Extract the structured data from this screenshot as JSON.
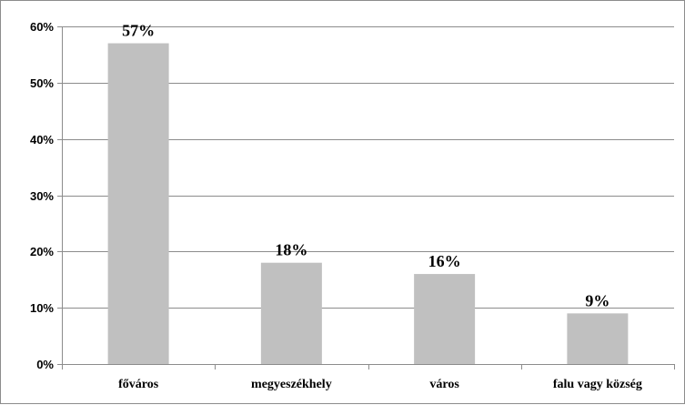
{
  "chart_data": {
    "type": "bar",
    "categories": [
      "főváros",
      "megyeszékhely",
      "város",
      "falu vagy község"
    ],
    "values": [
      57,
      18,
      16,
      9
    ],
    "data_labels": [
      "57%",
      "18%",
      "16%",
      "9%"
    ],
    "title": "",
    "xlabel": "",
    "ylabel": "",
    "ylim": [
      0,
      60
    ],
    "yticks": [
      0,
      10,
      20,
      30,
      40,
      50,
      60
    ],
    "ytick_labels": [
      "0%",
      "10%",
      "20%",
      "30%",
      "40%",
      "50%",
      "60%"
    ],
    "grid": true,
    "legend": "none",
    "bar_color": "#c0c0c0",
    "grid_color": "#8c8c8c"
  }
}
